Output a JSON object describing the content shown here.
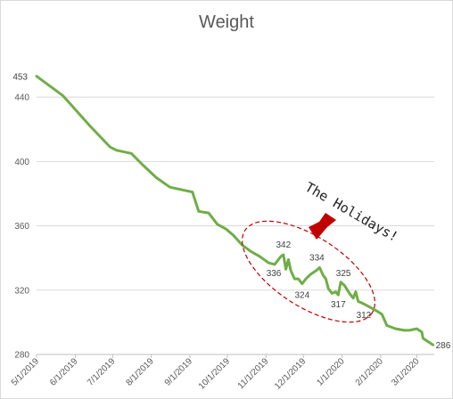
{
  "chart_data": {
    "type": "line",
    "title": "Weight",
    "xlabel": "",
    "ylabel": "",
    "ylim": [
      280,
      460
    ],
    "y_ticks": [
      280,
      320,
      360,
      400,
      440
    ],
    "x_tick_labels": [
      "5/1/2019",
      "6/1/2019",
      "7/1/2019",
      "8/1/2019",
      "9/1/2019",
      "10/1/2019",
      "11/1/2019",
      "12/1/2019",
      "1/1/2020",
      "2/1/2020",
      "3/1/2020"
    ],
    "x_tick_dates": [
      "2019-05-01",
      "2019-06-01",
      "2019-07-01",
      "2019-08-01",
      "2019-09-01",
      "2019-10-01",
      "2019-11-01",
      "2019-12-01",
      "2020-01-01",
      "2020-02-01",
      "2020-03-01"
    ],
    "xlim": [
      "2019-05-01",
      "2020-03-15"
    ],
    "grid": "horizontal",
    "line_color": "#70ad47",
    "series": [
      {
        "points": [
          [
            "2019-05-01",
            453
          ],
          [
            "2019-05-22",
            441
          ],
          [
            "2019-06-13",
            422
          ],
          [
            "2019-06-29",
            409
          ],
          [
            "2019-07-04",
            407
          ],
          [
            "2019-07-16",
            405
          ],
          [
            "2019-07-25",
            398
          ],
          [
            "2019-08-05",
            390
          ],
          [
            "2019-08-16",
            384
          ],
          [
            "2019-08-28",
            382
          ],
          [
            "2019-09-03",
            381
          ],
          [
            "2019-09-08",
            369
          ],
          [
            "2019-09-16",
            368
          ],
          [
            "2019-09-23",
            361
          ],
          [
            "2019-09-30",
            358
          ],
          [
            "2019-10-06",
            354
          ],
          [
            "2019-10-13",
            348
          ],
          [
            "2019-10-20",
            344
          ],
          [
            "2019-10-27",
            341
          ],
          [
            "2019-11-03",
            337
          ],
          [
            "2019-11-08",
            336
          ],
          [
            "2019-11-13",
            341
          ],
          [
            "2019-11-15",
            342
          ],
          [
            "2019-11-17",
            333
          ],
          [
            "2019-11-19",
            339
          ],
          [
            "2019-11-21",
            332
          ],
          [
            "2019-11-24",
            327
          ],
          [
            "2019-11-27",
            327
          ],
          [
            "2019-11-30",
            324
          ],
          [
            "2019-12-03",
            327
          ],
          [
            "2019-12-07",
            330
          ],
          [
            "2019-12-11",
            332
          ],
          [
            "2019-12-14",
            334
          ],
          [
            "2019-12-17",
            329
          ],
          [
            "2019-12-19",
            327
          ],
          [
            "2019-12-21",
            321
          ],
          [
            "2019-12-24",
            318
          ],
          [
            "2019-12-27",
            319
          ],
          [
            "2019-12-29",
            317
          ],
          [
            "2019-12-31",
            325
          ],
          [
            "2020-01-03",
            323
          ],
          [
            "2020-01-07",
            318
          ],
          [
            "2020-01-10",
            315
          ],
          [
            "2020-01-12",
            319
          ],
          [
            "2020-01-14",
            313
          ],
          [
            "2020-01-17",
            312
          ],
          [
            "2020-01-22",
            310
          ],
          [
            "2020-01-29",
            307
          ],
          [
            "2020-02-02",
            305
          ],
          [
            "2020-02-06",
            298
          ],
          [
            "2020-02-13",
            296
          ],
          [
            "2020-02-20",
            295
          ],
          [
            "2020-02-24",
            295
          ],
          [
            "2020-03-01",
            296
          ],
          [
            "2020-03-05",
            294
          ],
          [
            "2020-03-06",
            290
          ],
          [
            "2020-03-10",
            288
          ],
          [
            "2020-03-14",
            286
          ]
        ]
      }
    ],
    "data_labels": [
      {
        "date": "2019-05-01",
        "value": 453,
        "text": "453"
      },
      {
        "date": "2019-11-08",
        "value": 336,
        "text": "336"
      },
      {
        "date": "2019-11-15",
        "value": 342,
        "text": "342"
      },
      {
        "date": "2019-11-30",
        "value": 324,
        "text": "324"
      },
      {
        "date": "2019-12-14",
        "value": 334,
        "text": "334"
      },
      {
        "date": "2019-12-29",
        "value": 317,
        "text": "317"
      },
      {
        "date": "2019-12-31",
        "value": 325,
        "text": "325"
      },
      {
        "date": "2020-01-17",
        "value": 312,
        "text": "312"
      },
      {
        "date": "2020-03-14",
        "value": 286,
        "text": "286"
      }
    ],
    "annotation": {
      "text": "The Holidays!",
      "shape": "dashed ellipse",
      "shape_color": "#c00000",
      "arrow_color": "#c00000"
    }
  }
}
